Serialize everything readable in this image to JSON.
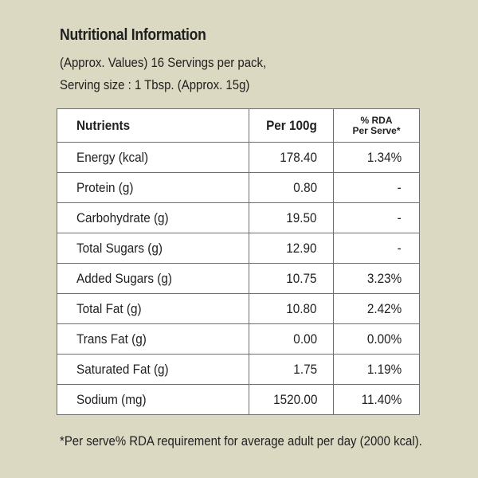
{
  "header": {
    "title": "Nutritional Information",
    "line1": "(Approx. Values) 16 Servings per pack,",
    "line2": "Serving size : 1 Tbsp. (Approx. 15g)"
  },
  "table": {
    "columns": {
      "nutrients": "Nutrients",
      "per100g": "Per 100g",
      "rda_line1": "% RDA",
      "rda_line2": "Per Serve*"
    },
    "rows": [
      {
        "name": "Energy (kcal)",
        "per100g": "178.40",
        "rda": "1.34%"
      },
      {
        "name": "Protein (g)",
        "per100g": "0.80",
        "rda": "-"
      },
      {
        "name": "Carbohydrate (g)",
        "per100g": "19.50",
        "rda": "-"
      },
      {
        "name": "Total Sugars (g)",
        "per100g": "12.90",
        "rda": "-"
      },
      {
        "name": "Added Sugars (g)",
        "per100g": "10.75",
        "rda": "3.23%"
      },
      {
        "name": "Total Fat (g)",
        "per100g": "10.80",
        "rda": "2.42%"
      },
      {
        "name": "Trans Fat (g)",
        "per100g": "0.00",
        "rda": "0.00%"
      },
      {
        "name": "Saturated Fat (g)",
        "per100g": "1.75",
        "rda": "1.19%"
      },
      {
        "name": "Sodium (mg)",
        "per100g": "1520.00",
        "rda": "11.40%"
      }
    ]
  },
  "footnote": "*Per serve% RDA requirement for average adult per day (2000 kcal).",
  "colors": {
    "background": "#dcd9c2",
    "table_background": "#ffffff",
    "border": "#6f6f6f"
  }
}
